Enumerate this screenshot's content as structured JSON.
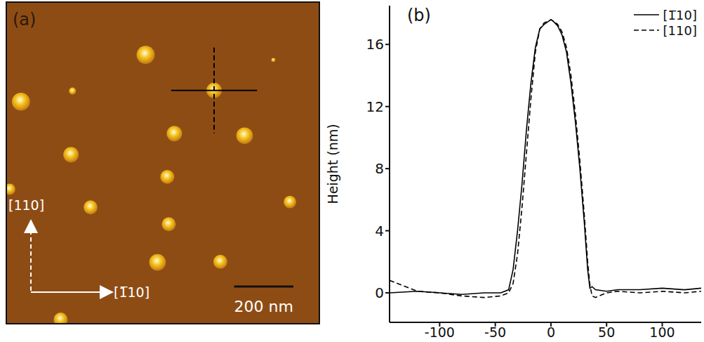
{
  "chart_data": [
    {
      "type": "scatter",
      "title": "(a)",
      "tick_labels": false,
      "grid": false,
      "color": "#f6c21c",
      "xlim": [
        0,
        1052
      ],
      "ylim": [
        0,
        1082
      ],
      "x": [
        468,
        221,
        899,
        699,
        47,
        565,
        802,
        216,
        541,
        282,
        955,
        546,
        508,
        720,
        9,
        181
      ],
      "values": [
        906,
        784,
        889,
        786,
        748,
        640,
        633,
        569,
        494,
        391,
        409,
        334,
        205,
        207,
        452,
        12
      ],
      "size": [
        61,
        24,
        14,
        52,
        61,
        52,
        56,
        52,
        47,
        47,
        42,
        47,
        56,
        47,
        38,
        47
      ],
      "scale_bar": {
        "value": 200,
        "label": "200 nm"
      },
      "annotations": [
        "[110]",
        "[1̅10]"
      ]
    },
    {
      "type": "line",
      "title": "(b)",
      "y_label": "Height (nm)",
      "grid": false,
      "legend": "upper right",
      "xlim": [
        -145,
        135
      ],
      "xticks": [
        -100,
        -50,
        0,
        50,
        100
      ],
      "ylim": [
        -1.9,
        18.5
      ],
      "yticks": [
        0,
        4,
        8,
        12,
        16
      ],
      "x": [
        -145,
        -120,
        -100,
        -80,
        -60,
        -45,
        -38,
        -34,
        -30,
        -26,
        -22,
        -18,
        -14,
        -10,
        -6,
        -2,
        0,
        2,
        6,
        10,
        14,
        18,
        22,
        26,
        30,
        33,
        35,
        37,
        40,
        50,
        60,
        80,
        100,
        120,
        135
      ],
      "series": [
        {
          "name": "[1̅10]",
          "color": "#000000",
          "line_style": "solid",
          "values": [
            0,
            0.1,
            0,
            -0.1,
            0,
            0,
            0.2,
            1.5,
            4,
            7,
            10.5,
            13.5,
            15.8,
            17,
            17.3,
            17.5,
            17.6,
            17.5,
            17.2,
            16.6,
            15.5,
            13.5,
            11,
            8,
            4.5,
            1.5,
            0.3,
            0.4,
            0.2,
            0.1,
            0.2,
            0.2,
            0.3,
            0.2,
            0.3
          ]
        },
        {
          "name": "[110]",
          "color": "#000000",
          "line_style": "dashed",
          "values": [
            0.8,
            0.1,
            0,
            -0.2,
            -0.3,
            -0.2,
            0,
            0.6,
            2.5,
            5.5,
            9,
            12.5,
            15.5,
            17,
            17.4,
            17.5,
            17.6,
            17.5,
            17.3,
            16.8,
            15.8,
            14,
            11.5,
            8.5,
            5,
            2,
            0.5,
            -0.2,
            -0.3,
            0,
            0.1,
            0,
            0.1,
            0,
            0.1
          ]
        }
      ]
    }
  ]
}
